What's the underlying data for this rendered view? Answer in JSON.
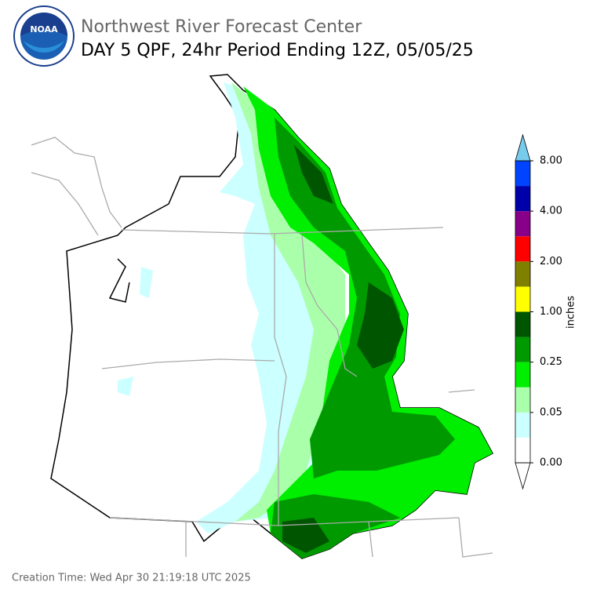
{
  "header": {
    "logo": "NOAA",
    "title": "Northwest River Forecast Center",
    "subtitle": "DAY 5 QPF, 24hr Period Ending 12Z, 05/05/25"
  },
  "colorbar": {
    "label": "inches",
    "colors": [
      "#ffffff",
      "#ccffff",
      "#aaffaa",
      "#00ee00",
      "#009900",
      "#005500",
      "#ffff00",
      "#808000",
      "#ff0000",
      "#880088",
      "#0000aa",
      "#0044ff"
    ],
    "under_color": "#ffffff",
    "over_color": "#77ccee",
    "ticks": [
      {
        "value": 0,
        "label": "0.00"
      },
      {
        "value": 0.05,
        "label": "0.05"
      },
      {
        "value": 0.25,
        "label": "0.25"
      },
      {
        "value": 1,
        "label": "1.00"
      },
      {
        "value": 2,
        "label": "2.00"
      },
      {
        "value": 4,
        "label": "4.00"
      },
      {
        "value": 8,
        "label": "8.00"
      }
    ]
  },
  "footer": {
    "creation_time": "Creation Time: Wed Apr 30 21:19:18 UTC 2025"
  }
}
